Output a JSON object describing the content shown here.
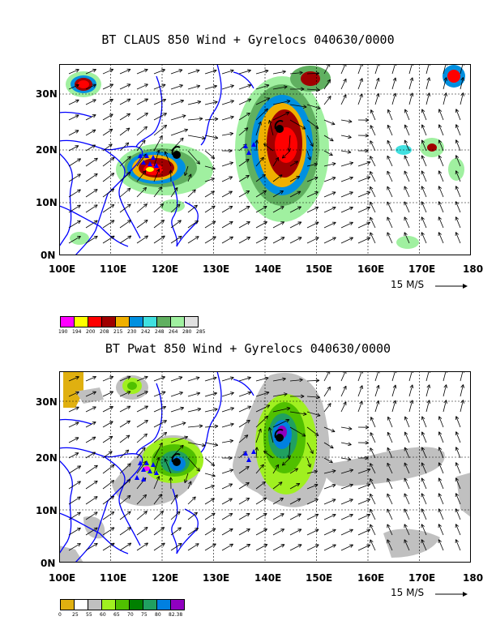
{
  "panel1": {
    "title": "BT CLAUS 850 Wind + Gyrelocs 040630/0000",
    "x_ticks": [
      "100E",
      "110E",
      "120E",
      "130E",
      "140E",
      "150E",
      "160E",
      "170E",
      "180"
    ],
    "y_ticks": [
      "30N",
      "20N",
      "10N",
      "0N"
    ],
    "scale_label": "15 M/S",
    "colorbar_colors": [
      "#ff00ff",
      "#ffff00",
      "#ff0000",
      "#a00000",
      "#f0b000",
      "#0090e0",
      "#40e0e0",
      "#60b060",
      "#a0f0a0",
      "#e0e0e0"
    ],
    "colorbar_labels": [
      "190",
      "194",
      "200",
      "208",
      "215",
      "230",
      "242",
      "248",
      "264",
      "280",
      "285"
    ]
  },
  "panel2": {
    "title": "BT Pwat 850 Wind + Gyrelocs 040630/0000",
    "x_ticks": [
      "100E",
      "110E",
      "120E",
      "130E",
      "140E",
      "150E",
      "160E",
      "170E",
      "180"
    ],
    "y_ticks": [
      "30N",
      "20N",
      "10N",
      "0N"
    ],
    "scale_label": "15 M/S",
    "colorbar_colors": [
      "#e0b010",
      "#ffffff",
      "#c0c0c0",
      "#a0f020",
      "#50c000",
      "#008000",
      "#20a060",
      "#0080e0",
      "#9000c0"
    ],
    "colorbar_labels": [
      "0",
      "25",
      "55",
      "60",
      "65",
      "70",
      "75",
      "80",
      "82.38"
    ]
  },
  "colors": {
    "coast": "#0000ff",
    "gyre": "#0000ff",
    "low_cloud": "#e0e0e0"
  }
}
